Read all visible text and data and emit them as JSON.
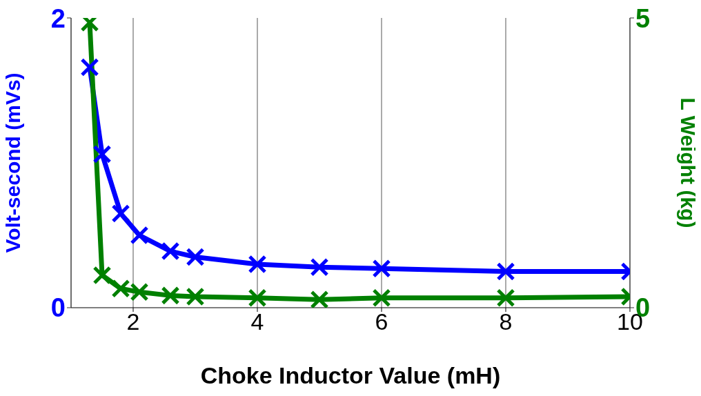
{
  "chart_data": {
    "type": "line",
    "xlabel": "Choke Inductor Value (mH)",
    "ylabel": "Volt-second (mVs)",
    "y2label": "L Weight (kg)",
    "x": [
      1.3,
      1.5,
      1.8,
      2.1,
      2.6,
      3,
      4,
      5,
      6,
      8,
      10
    ],
    "series": [
      {
        "color": "#0000ff",
        "values": [
          1.66,
          1.06,
          0.65,
          0.5,
          0.39,
          0.35,
          0.3,
          0.28,
          0.27,
          0.25,
          0.25
        ]
      },
      {
        "color": "#008000",
        "axis": "y2",
        "values": [
          4.92,
          0.56,
          0.33,
          0.27,
          0.21,
          0.19,
          0.17,
          0.14,
          0.17,
          0.17,
          0.19
        ]
      }
    ],
    "xlim": [
      1,
      10
    ],
    "xticks": [
      2,
      4,
      6,
      8,
      10
    ],
    "ylim": [
      0,
      2
    ],
    "yticks": [
      0,
      2
    ],
    "y2lim": [
      0,
      5
    ],
    "y2ticks": [
      0,
      5
    ],
    "grid": "x",
    "marker": "cross",
    "line_style": "solid"
  }
}
